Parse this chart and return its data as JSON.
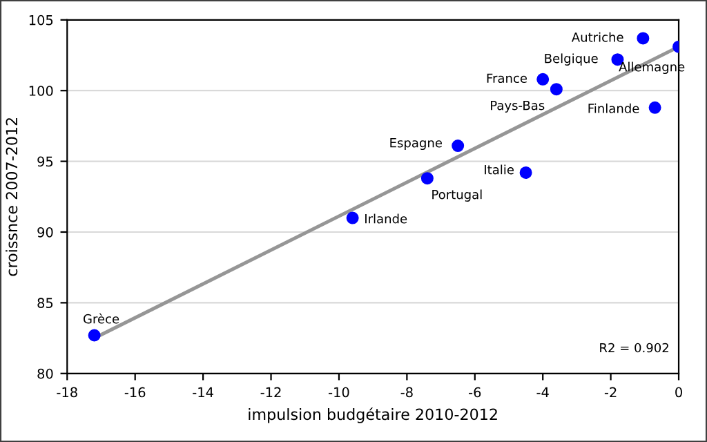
{
  "chart_data": {
    "type": "scatter",
    "xlabel": "impulsion budgétaire 2010-2012",
    "ylabel": "croissnce 2007-2012",
    "xlim": [
      -18,
      0
    ],
    "xticks": [
      -18,
      -16,
      -14,
      -12,
      -10,
      -8,
      -6,
      -4,
      -2,
      0
    ],
    "ylim": [
      80,
      105
    ],
    "yticks": [
      80,
      85,
      90,
      95,
      100,
      105
    ],
    "grid": "y",
    "series": [
      {
        "marker": "circle",
        "color": "#0000ff",
        "x": [
          -1.05,
          0,
          -1.8,
          -4.0,
          -3.6,
          -0.7,
          -6.5,
          -4.5,
          -7.4,
          -9.6,
          -17.2
        ],
        "values": [
          103.7,
          103.1,
          102.2,
          100.8,
          100.1,
          98.8,
          96.1,
          94.2,
          93.8,
          91.0,
          82.7
        ]
      },
      {
        "type": "line",
        "color": "#969696",
        "x": [
          -17.2,
          0
        ],
        "values": [
          82.5,
          103.1
        ]
      }
    ],
    "annotations": [
      {
        "text": "Autriche",
        "x": -1.05,
        "y": 103.7
      },
      {
        "text": "Allemagne",
        "x": 0,
        "y": 103.1
      },
      {
        "text": "Belgique",
        "x": -1.8,
        "y": 102.2
      },
      {
        "text": "France",
        "x": -4.0,
        "y": 100.8
      },
      {
        "text": "Pays-Bas",
        "x": -3.6,
        "y": 100.1
      },
      {
        "text": "Finlande",
        "x": -0.7,
        "y": 98.8
      },
      {
        "text": "Espagne",
        "x": -6.5,
        "y": 96.1
      },
      {
        "text": "Italie",
        "x": -4.5,
        "y": 94.2
      },
      {
        "text": "Portugal",
        "x": -7.4,
        "y": 93.8
      },
      {
        "text": "Irlande",
        "x": -9.6,
        "y": 91.0
      },
      {
        "text": "Grèce",
        "x": -17.2,
        "y": 82.7
      },
      "R2 = 0.902"
    ]
  }
}
